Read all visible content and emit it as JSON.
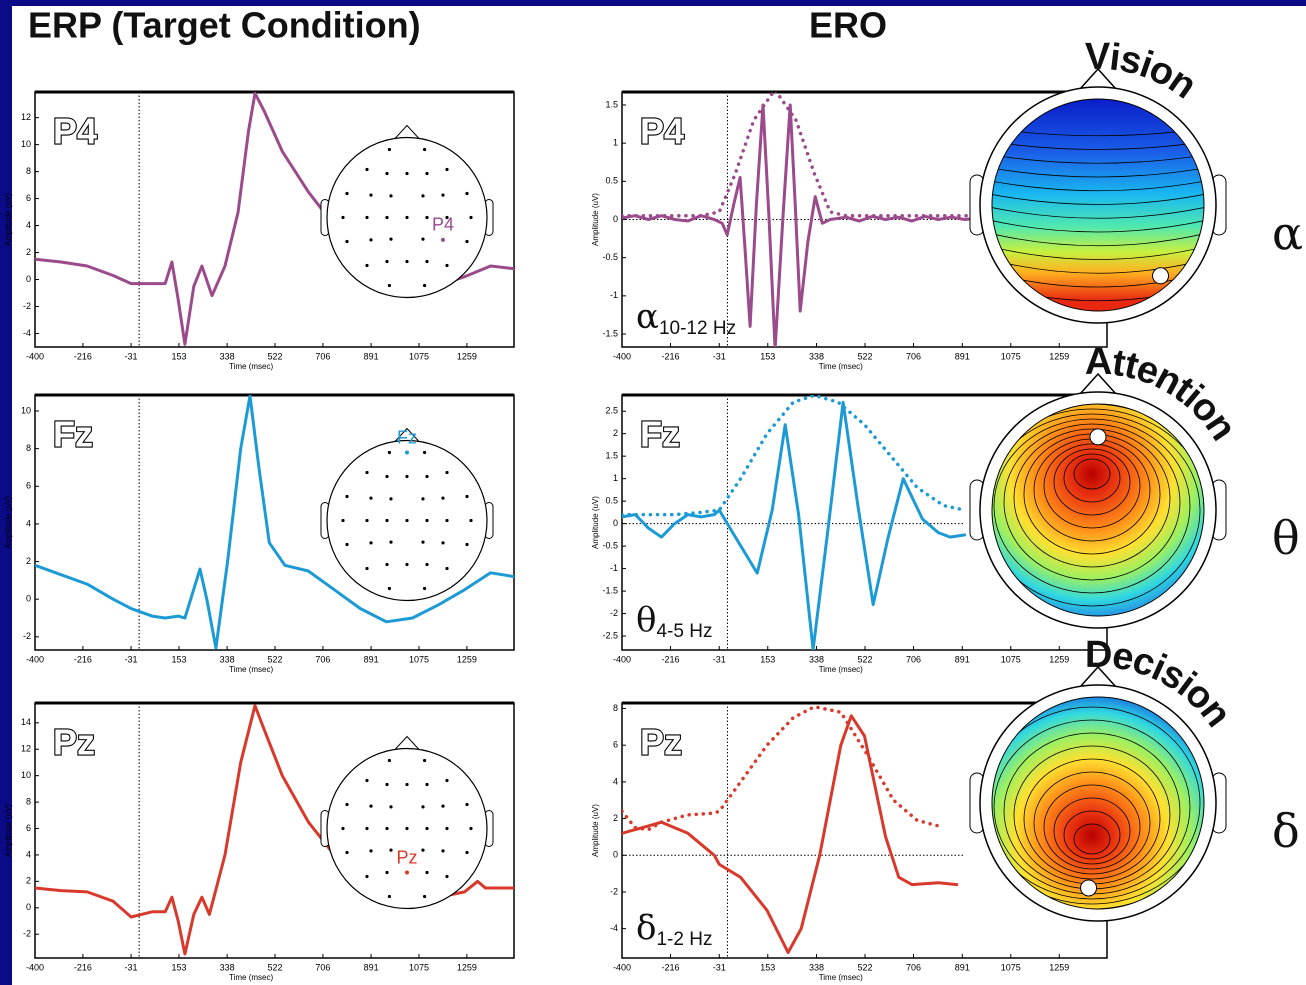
{
  "titles": {
    "erp": "ERP (Target Condition)",
    "ero": "ERO"
  },
  "chart_data": [
    {
      "type": "line",
      "channel": "P4",
      "xlabel": "Time (msec)",
      "ylabel": "Amplitude (uV)",
      "xlim": [
        -400,
        1440
      ],
      "xticks": [
        -400,
        -216,
        -31,
        153,
        338,
        522,
        706,
        891,
        1075,
        1259
      ],
      "ylim": [
        -5,
        13.9
      ],
      "yticks": [
        -4,
        -2,
        0,
        2,
        4,
        6,
        8,
        10,
        12
      ],
      "series": [
        {
          "color": "#9b4a8c",
          "style": "solid",
          "x": [
            -400,
            -300,
            -200,
            -100,
            -31,
            50,
            100,
            126,
            150,
            176,
            210,
            241,
            280,
            330,
            380,
            420,
            445,
            480,
            550,
            650,
            750,
            850,
            950,
            1050,
            1150,
            1250,
            1350,
            1440
          ],
          "values": [
            1.5,
            1.3,
            1.0,
            0.3,
            -0.3,
            -0.3,
            -0.3,
            1.3,
            -1.5,
            -4.8,
            -0.5,
            1.0,
            -1.2,
            1.0,
            5,
            11,
            13.8,
            12.5,
            9.5,
            6.5,
            4,
            2.3,
            1.0,
            -0.2,
            -0.4,
            0.2,
            1.0,
            0.8
          ]
        }
      ]
    },
    {
      "type": "line",
      "channel": "Fz",
      "xlabel": "Time (msec)",
      "ylabel": "Amplitude (uV)",
      "xlim": [
        -400,
        1440
      ],
      "xticks": [
        -400,
        -216,
        -31,
        153,
        338,
        522,
        706,
        891,
        1075,
        1259
      ],
      "ylim": [
        -2.7,
        10.85
      ],
      "yticks": [
        -2,
        0,
        2,
        4,
        6,
        8,
        10
      ],
      "series": [
        {
          "color": "#1c9ad6",
          "style": "solid",
          "x": [
            -400,
            -300,
            -200,
            -100,
            -31,
            50,
            100,
            150,
            176,
            234,
            260,
            295,
            340,
            390,
            426,
            460,
            500,
            560,
            650,
            750,
            850,
            950,
            1050,
            1150,
            1250,
            1350,
            1440
          ],
          "values": [
            1.8,
            1.3,
            0.8,
            0,
            -0.5,
            -0.9,
            -1.0,
            -0.9,
            -1.0,
            1.6,
            0,
            -2.6,
            2,
            8,
            10.8,
            7,
            3,
            1.8,
            1.5,
            0.5,
            -0.5,
            -1.2,
            -1.0,
            -0.3,
            0.5,
            1.4,
            1.2
          ]
        }
      ]
    },
    {
      "type": "line",
      "channel": "Pz",
      "xlabel": "Time (msec)",
      "ylabel": "Amplitude (uV)",
      "xlim": [
        -400,
        1440
      ],
      "xticks": [
        -400,
        -216,
        -31,
        153,
        338,
        522,
        706,
        891,
        1075,
        1259
      ],
      "ylim": [
        -3.8,
        15.5
      ],
      "yticks": [
        -2,
        0,
        2,
        4,
        6,
        8,
        10,
        12,
        14
      ],
      "series": [
        {
          "color": "#d8392b",
          "style": "solid",
          "x": [
            -400,
            -300,
            -200,
            -100,
            -31,
            50,
            100,
            126,
            150,
            176,
            210,
            241,
            270,
            330,
            390,
            445,
            480,
            550,
            650,
            750,
            850,
            950,
            1050,
            1150,
            1250,
            1300,
            1330,
            1440
          ],
          "values": [
            1.5,
            1.3,
            1.2,
            0.5,
            -0.7,
            -0.3,
            -0.3,
            0.8,
            -1.0,
            -3.5,
            -0.5,
            0.8,
            -0.5,
            4,
            11,
            15.3,
            13.5,
            10,
            6.5,
            4,
            2,
            0.8,
            0.3,
            0.8,
            1.2,
            2.0,
            1.5,
            1.5
          ]
        }
      ]
    },
    {
      "type": "line",
      "channel": "P4",
      "xlabel": "Time (msec)",
      "ylabel": "Amplitude (uV)",
      "zero_line": true,
      "band_label": {
        "symbol": "α",
        "range": "10-12 Hz"
      },
      "xlim": [
        -400,
        1440
      ],
      "xticks": [
        -400,
        -216,
        -31,
        153,
        338,
        522,
        706,
        891,
        1075,
        1259
      ],
      "ylim": [
        -1.67,
        1.67
      ],
      "yticks": [
        -1.5,
        -1,
        -0.5,
        0,
        0.5,
        1,
        1.5
      ],
      "series": [
        {
          "color": "#9b4a8c",
          "style": "solid",
          "x": [
            -400,
            -350,
            -300,
            -250,
            -200,
            -150,
            -100,
            -50,
            -20,
            -1,
            24,
            48,
            67,
            86,
            110,
            135,
            158,
            181,
            210,
            238,
            257,
            276,
            305,
            333,
            360,
            390,
            450,
            500,
            550,
            600,
            650,
            700,
            750,
            800,
            850,
            900,
            960
          ],
          "values": [
            0.02,
            0.05,
            0,
            0.05,
            0,
            -0.02,
            0.05,
            0,
            -0.05,
            -0.2,
            0.2,
            0.55,
            -0.4,
            -1.4,
            0.2,
            1.5,
            0,
            -1.7,
            0,
            1.5,
            0.2,
            -1.2,
            -0.3,
            0.3,
            -0.05,
            0,
            0.03,
            -0.02,
            0.04,
            0,
            0.03,
            -0.02,
            0.04,
            0,
            0.03,
            0,
            0.02
          ]
        },
        {
          "color": "#9b4a8c",
          "style": "dotted",
          "x": [
            -400,
            -100,
            -31,
            30,
            100,
            180,
            260,
            330,
            390,
            450,
            960
          ],
          "values": [
            0.05,
            0.05,
            0.1,
            0.6,
            1.3,
            1.7,
            1.3,
            0.6,
            0.1,
            0.05,
            0.05
          ]
        }
      ]
    },
    {
      "type": "line",
      "channel": "Fz",
      "xlabel": "Time (msec)",
      "ylabel": "Amplitude (uV)",
      "zero_line": true,
      "band_label": {
        "symbol": "θ",
        "range": "4-5 Hz"
      },
      "xlim": [
        -400,
        1440
      ],
      "xticks": [
        -400,
        -216,
        -31,
        153,
        338,
        522,
        706,
        891,
        1075,
        1259
      ],
      "ylim": [
        -2.81,
        2.86
      ],
      "yticks": [
        -2.5,
        -2,
        -1.5,
        -1,
        -0.5,
        0,
        0.5,
        1,
        1.5,
        2,
        2.5
      ],
      "series": [
        {
          "color": "#1c9ad6",
          "style": "solid",
          "x": [
            -400,
            -350,
            -300,
            -250,
            -200,
            -150,
            -100,
            -50,
            -31,
            20,
            113,
            170,
            219,
            270,
            325,
            380,
            439,
            495,
            553,
            610,
            667,
            740,
            800,
            845,
            900
          ],
          "values": [
            0.15,
            0.2,
            -0.1,
            -0.3,
            0,
            0.2,
            0.15,
            0.2,
            0.3,
            -0.2,
            -1.1,
            0.3,
            2.2,
            0.2,
            -2.8,
            -0.2,
            2.7,
            0.4,
            -1.8,
            -0.3,
            1.0,
            0.1,
            -0.2,
            -0.3,
            -0.25
          ]
        },
        {
          "color": "#1c9ad6",
          "style": "dotted",
          "x": [
            -400,
            -200,
            -100,
            -31,
            50,
            150,
            250,
            330,
            420,
            520,
            620,
            720,
            820,
            900
          ],
          "values": [
            0.2,
            0.2,
            0.25,
            0.3,
            1.0,
            2.0,
            2.7,
            2.85,
            2.7,
            2.2,
            1.5,
            0.8,
            0.4,
            0.3
          ]
        }
      ]
    },
    {
      "type": "line",
      "channel": "Pz",
      "xlabel": "Time (msec)",
      "ylabel": "Amplitude (uV)",
      "zero_line": true,
      "band_label": {
        "symbol": "δ",
        "range": "1-2 Hz"
      },
      "xlim": [
        -400,
        1440
      ],
      "xticks": [
        -400,
        -216,
        -31,
        153,
        338,
        522,
        706,
        891,
        1075,
        1259
      ],
      "ylim": [
        -5.6,
        8.3
      ],
      "yticks": [
        -4,
        -2,
        0,
        2,
        4,
        6,
        8
      ],
      "series": [
        {
          "color": "#d8392b",
          "style": "solid",
          "x": [
            -400,
            -300,
            -250,
            -150,
            -50,
            -31,
            50,
            150,
            230,
            280,
            350,
            430,
            470,
            520,
            600,
            650,
            700,
            800,
            870
          ],
          "values": [
            1.2,
            1.6,
            1.8,
            1.2,
            0,
            -0.5,
            -1.2,
            -3,
            -5.3,
            -4,
            0,
            6,
            7.6,
            6.5,
            1,
            -1.2,
            -1.6,
            -1.5,
            -1.6
          ]
        },
        {
          "color": "#d8392b",
          "style": "dotted",
          "x": [
            -400,
            -350,
            -300,
            -250,
            -150,
            -50,
            -31,
            50,
            150,
            250,
            330,
            430,
            530,
            630,
            720,
            800
          ],
          "values": [
            2.4,
            1.5,
            1.4,
            1.8,
            2.2,
            2.3,
            2.4,
            4,
            6,
            7.5,
            8.1,
            7.8,
            5.5,
            3,
            1.9,
            1.6
          ]
        }
      ]
    }
  ],
  "topomaps": [
    {
      "label": "Vision",
      "symbol": "α"
    },
    {
      "label": "Attention",
      "symbol": "θ"
    },
    {
      "label": "Decision",
      "symbol": "δ"
    }
  ]
}
